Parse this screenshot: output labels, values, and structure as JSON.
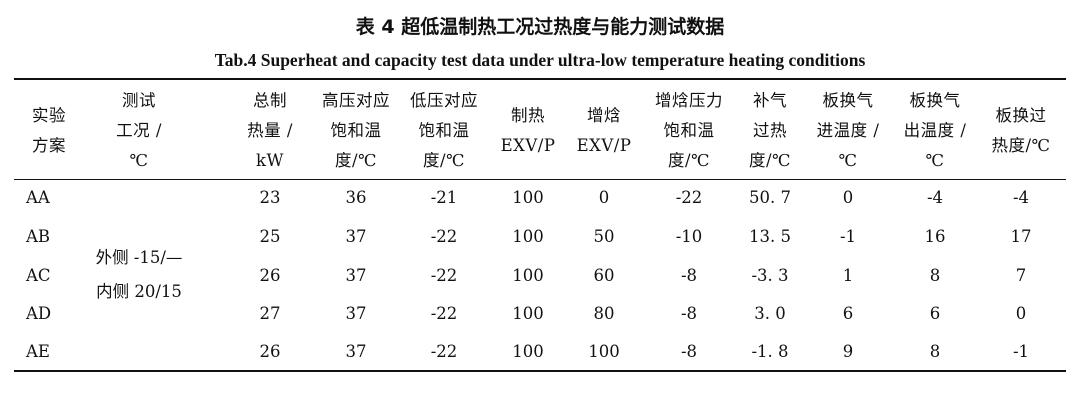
{
  "caption": {
    "cn": "表 4 超低温制热工况过热度与能力测试数据",
    "en": "Tab.4 Superheat and capacity test data under ultra-low temperature heating conditions"
  },
  "headers": [
    "实验\n方案",
    "测试\n工况 /\n℃",
    "总制\n热量 /\nkW",
    "高压对应\n饱和温\n度/℃",
    "低压对应\n饱和温\n度/℃",
    "制热\nEXV/P",
    "增焓\nEXV/P",
    "增焓压力\n饱和温\n度/℃",
    "补气\n过热\n度/℃",
    "板换气\n进温度 /\n℃",
    "板换气\n出温度 /\n℃",
    "板换过\n热度/℃"
  ],
  "condition": "外侧 -15/—\n内侧 20/15",
  "rows": [
    {
      "scheme": "AA",
      "capacity": "23",
      "high_sat": "36",
      "low_sat": "-21",
      "heat_exv": "100",
      "enh_exv": "0",
      "enh_sat": "-22",
      "inj_sh": "50. 7",
      "phe_in": "0",
      "phe_out": "-4",
      "phe_sh": "-4"
    },
    {
      "scheme": "AB",
      "capacity": "25",
      "high_sat": "37",
      "low_sat": "-22",
      "heat_exv": "100",
      "enh_exv": "50",
      "enh_sat": "-10",
      "inj_sh": "13. 5",
      "phe_in": "-1",
      "phe_out": "16",
      "phe_sh": "17"
    },
    {
      "scheme": "AC",
      "capacity": "26",
      "high_sat": "37",
      "low_sat": "-22",
      "heat_exv": "100",
      "enh_exv": "60",
      "enh_sat": "-8",
      "inj_sh": "-3. 3",
      "phe_in": "1",
      "phe_out": "8",
      "phe_sh": "7"
    },
    {
      "scheme": "AD",
      "capacity": "27",
      "high_sat": "37",
      "low_sat": "-22",
      "heat_exv": "100",
      "enh_exv": "80",
      "enh_sat": "-8",
      "inj_sh": "3. 0",
      "phe_in": "6",
      "phe_out": "6",
      "phe_sh": "0"
    },
    {
      "scheme": "AE",
      "capacity": "26",
      "high_sat": "37",
      "low_sat": "-22",
      "heat_exv": "100",
      "enh_exv": "100",
      "enh_sat": "-8",
      "inj_sh": "-1. 8",
      "phe_in": "9",
      "phe_out": "8",
      "phe_sh": "-1"
    }
  ]
}
